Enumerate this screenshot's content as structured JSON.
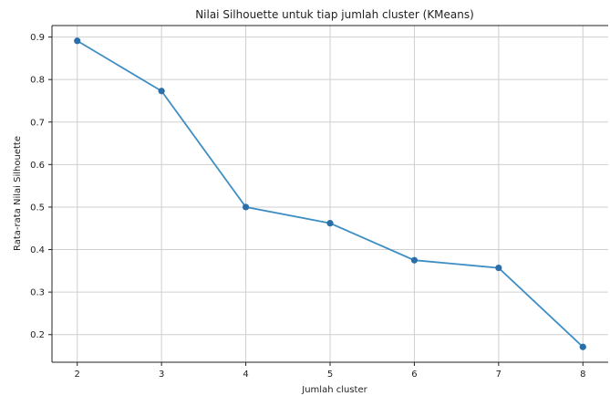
{
  "chart_data": {
    "type": "line",
    "title": "Nilai Silhouette untuk tiap jumlah cluster (KMeans)",
    "xlabel": "Jumlah cluster",
    "ylabel": "Rata-rata Nilai Silhouette",
    "x": [
      2,
      3,
      4,
      5,
      6,
      7,
      8
    ],
    "series": [
      {
        "values": [
          0.891,
          0.773,
          0.5,
          0.462,
          0.375,
          0.357,
          0.171
        ]
      }
    ],
    "xticks": [
      "2",
      "3",
      "4",
      "5",
      "6",
      "7",
      "8"
    ],
    "yticks": [
      "0.2",
      "0.3",
      "0.4",
      "0.5",
      "0.6",
      "0.7",
      "0.8",
      "0.9"
    ],
    "ytick_values": [
      0.2,
      0.3,
      0.4,
      0.5,
      0.6,
      0.7,
      0.8,
      0.9
    ],
    "xlim": [
      1.7,
      8.3
    ],
    "ylim": [
      0.135,
      0.927
    ],
    "grid": true,
    "marker": "circle",
    "colors": {
      "line": "#3e8ec4",
      "marker": "#2b6fa8",
      "grid": "#cfcfcf",
      "axis": "#222222"
    }
  }
}
